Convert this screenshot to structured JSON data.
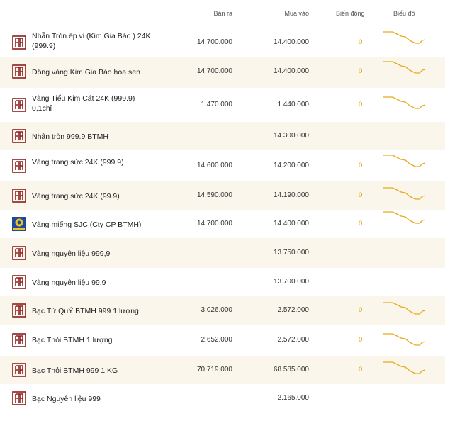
{
  "header": {
    "sell": "Bán ra",
    "buy": "Mua vào",
    "change": "Biến động",
    "chart": "Biểu đồ"
  },
  "colors": {
    "alt_row": "#fbf6ec",
    "brand": "#8b1e1e",
    "sparkline": "#e9a91b",
    "change": "#d6a21c"
  },
  "rows": [
    {
      "name": "Nhẫn Tròn ép vỉ (Kim Gia Bảo ) 24K (999.9)",
      "sell": "14.700.000",
      "buy": "14.400.000",
      "change": "0",
      "logo": "btmh-logo",
      "chart": true
    },
    {
      "name": "Đồng vàng Kim Gia Bảo hoa sen",
      "sell": "14.700.000",
      "buy": "14.400.000",
      "change": "0",
      "logo": "btmh-logo",
      "chart": true
    },
    {
      "name": "Vàng Tiểu Kim Cát 24K (999.9) 0,1chỉ",
      "sell": "1.470.000",
      "buy": "1.440.000",
      "change": "0",
      "logo": "btmh-logo",
      "chart": true
    },
    {
      "name": "Nhẫn tròn 999.9 BTMH",
      "sell": "",
      "buy": "14.300.000",
      "change": "",
      "logo": "btmh-logo",
      "chart": false
    },
    {
      "name": "Vàng trang sức 24K (999.9)",
      "sell": "14.600.000",
      "buy": "14.200.000",
      "change": "0",
      "logo": "btmh-logo",
      "chart": true
    },
    {
      "name": "Vàng trang sức 24K (99.9)",
      "sell": "14.590.000",
      "buy": "14.190.000",
      "change": "0",
      "logo": "btmh-logo",
      "chart": true
    },
    {
      "name": "Vàng miếng SJC (Cty CP BTMH)",
      "sell": "14.700.000",
      "buy": "14.400.000",
      "change": "0",
      "logo": "sjc-logo",
      "chart": true
    },
    {
      "name": "Vàng nguyên liệu 999,9",
      "sell": "",
      "buy": "13.750.000",
      "change": "",
      "logo": "btmh-logo",
      "chart": false
    },
    {
      "name": "Vàng nguyên liệu 99.9",
      "sell": "",
      "buy": "13.700.000",
      "change": "",
      "logo": "btmh-logo",
      "chart": false
    },
    {
      "name": "Bạc Tứ QuÝ BTMH 999 1 lượng",
      "sell": "3.026.000",
      "buy": "2.572.000",
      "change": "0",
      "logo": "btmh-logo",
      "chart": true
    },
    {
      "name": "Bạc Thỏi BTMH 1 lượng",
      "sell": "2.652.000",
      "buy": "2.572.000",
      "change": "0",
      "logo": "btmh-logo",
      "chart": true
    },
    {
      "name": "Bạc Thỏi BTMH 999 1 KG",
      "sell": "70.719.000",
      "buy": "68.585.000",
      "change": "0",
      "logo": "btmh-logo",
      "chart": true
    },
    {
      "name": "Bạc Nguyên liệu 999",
      "sell": "",
      "buy": "2.165.000",
      "change": "",
      "logo": "btmh-logo",
      "chart": false
    }
  ]
}
